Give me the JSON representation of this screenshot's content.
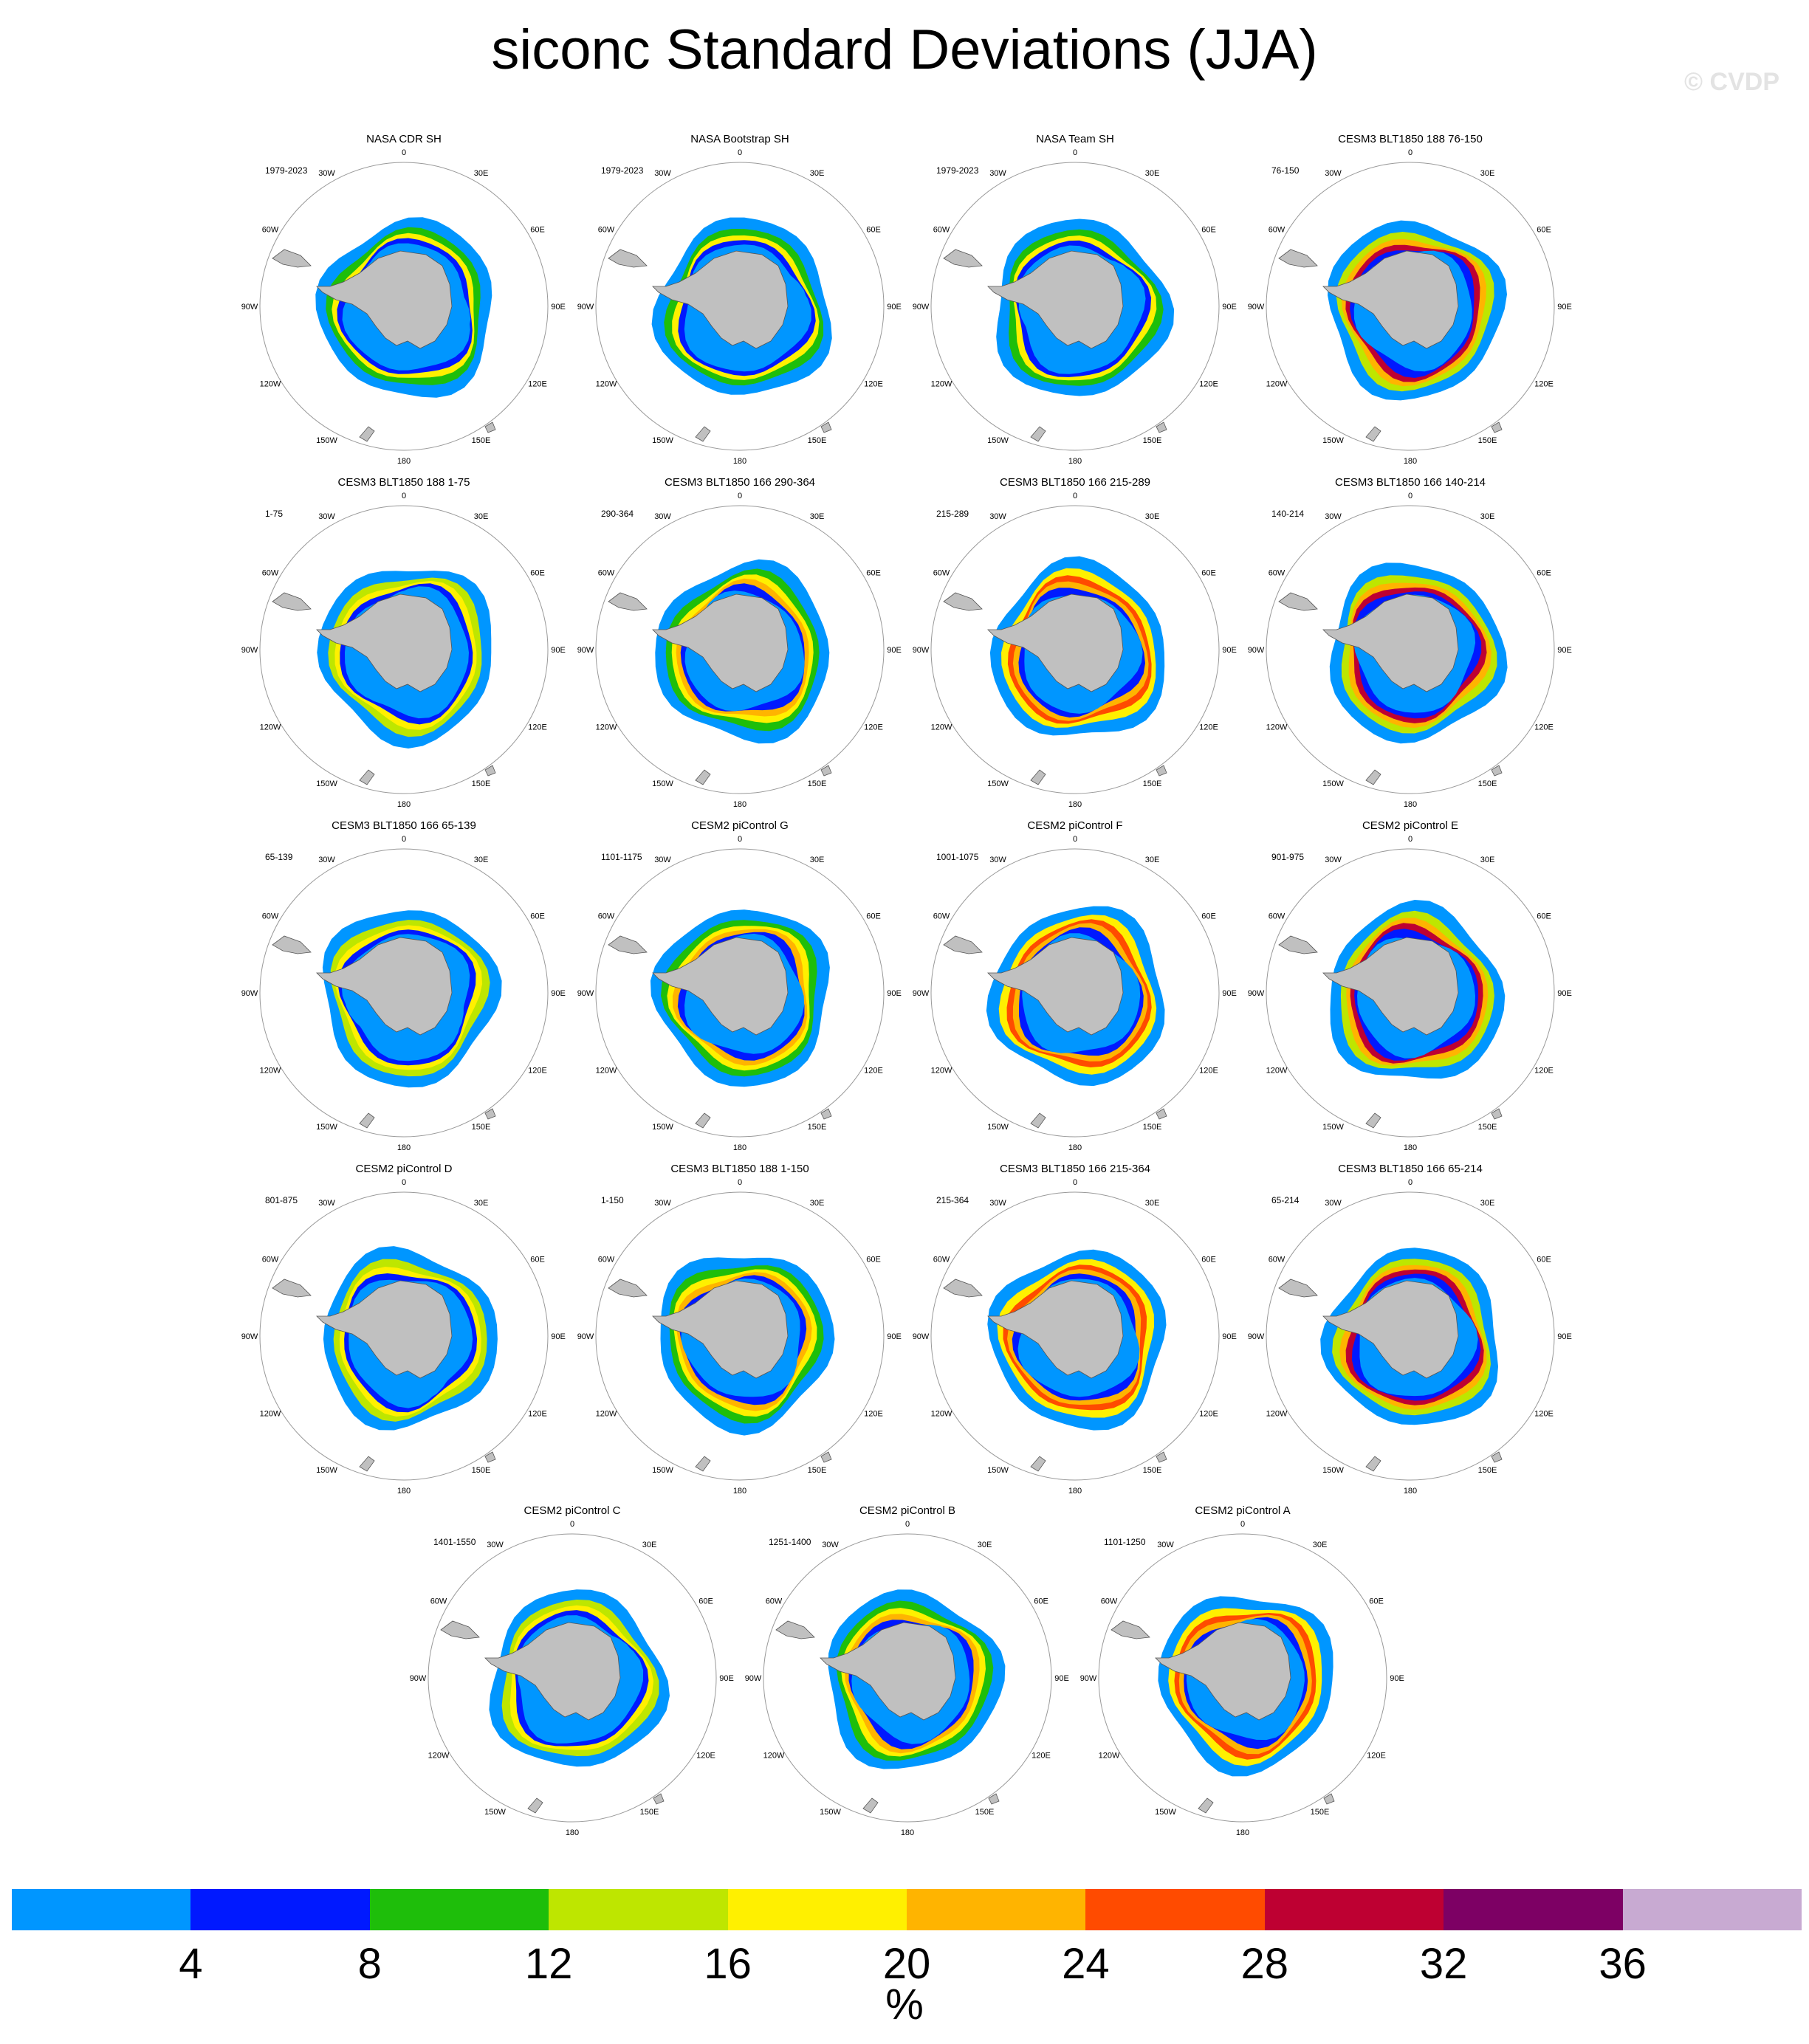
{
  "title": "siconc Standard Deviations (JJA)",
  "watermark": "© CVDP",
  "colorbar": {
    "units": "%",
    "ticks": [
      "4",
      "8",
      "12",
      "16",
      "20",
      "24",
      "28",
      "32",
      "36"
    ],
    "colors": [
      "#0096ff",
      "#0019ff",
      "#1ebe0a",
      "#bee600",
      "#fff000",
      "#ffb400",
      "#ff4b00",
      "#be0032",
      "#7d0064",
      "#c8aad2"
    ]
  },
  "map_labels": {
    "lon_0": "0",
    "lon_30e": "30E",
    "lon_60e": "60E",
    "lon_90e": "90E",
    "lon_120e": "120E",
    "lon_150e": "150E",
    "lon_180": "180",
    "lon_150w": "150W",
    "lon_120w": "120W",
    "lon_90w": "90W",
    "lon_60w": "60W",
    "lon_30w": "30W"
  },
  "panels": [
    {
      "title": "NASA CDR SH",
      "years": "1979-2023"
    },
    {
      "title": "NASA Bootstrap SH",
      "years": "1979-2023"
    },
    {
      "title": "NASA Team SH",
      "years": "1979-2023"
    },
    {
      "title": "CESM3 BLT1850 188 76-150",
      "years": "76-150"
    },
    {
      "title": "CESM3 BLT1850 188 1-75",
      "years": "1-75"
    },
    {
      "title": "CESM3 BLT1850 166 290-364",
      "years": "290-364"
    },
    {
      "title": "CESM3 BLT1850 166 215-289",
      "years": "215-289"
    },
    {
      "title": "CESM3 BLT1850 166 140-214",
      "years": "140-214"
    },
    {
      "title": "CESM3 BLT1850 166 65-139",
      "years": "65-139"
    },
    {
      "title": "CESM2 piControl G",
      "years": "1101-1175"
    },
    {
      "title": "CESM2 piControl F",
      "years": "1001-1075"
    },
    {
      "title": "CESM2 piControl E",
      "years": "901-975"
    },
    {
      "title": "CESM2 piControl D",
      "years": "801-875"
    },
    {
      "title": "CESM3 BLT1850 188 1-150",
      "years": "1-150"
    },
    {
      "title": "CESM3 BLT1850 166 215-364",
      "years": "215-364"
    },
    {
      "title": "CESM3 BLT1850 166 65-214",
      "years": "65-214"
    },
    {
      "title": "CESM2 piControl C",
      "years": "1401-1550"
    },
    {
      "title": "CESM2 piControl B",
      "years": "1251-1400"
    },
    {
      "title": "CESM2 piControl A",
      "years": "1101-1250"
    }
  ]
}
